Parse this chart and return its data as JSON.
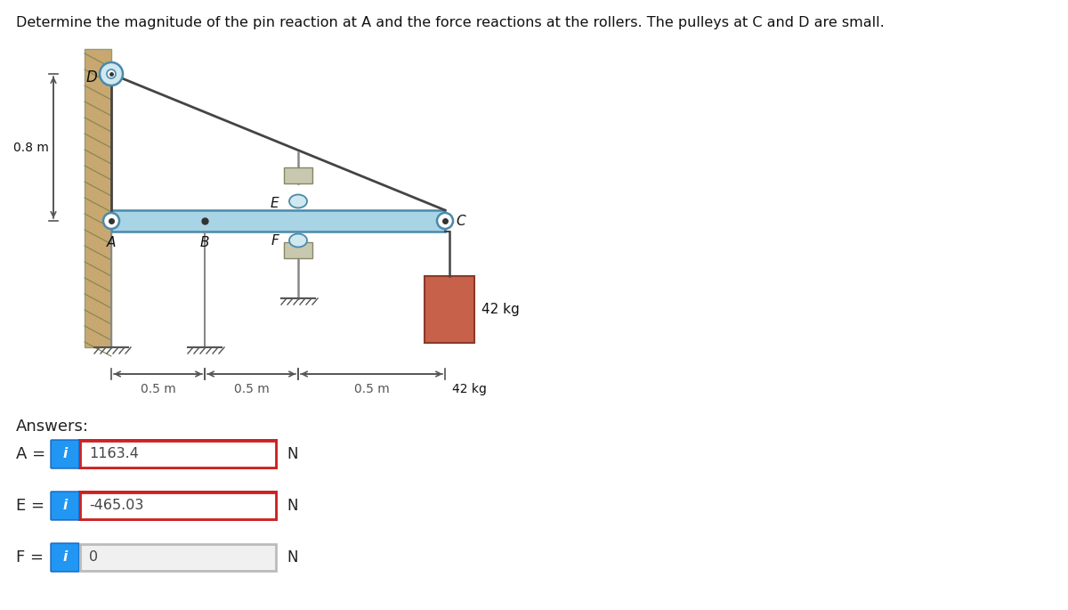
{
  "title": "Determine the magnitude of the pin reaction at A and the force reactions at the rollers. The pulleys at C and D are small.",
  "background_color": "#ffffff",
  "wall_color": "#c8a870",
  "wall_hatch_color": "#8B7040",
  "beam_color": "#a8d4e6",
  "beam_edge_color": "#4a8aaa",
  "rope_color": "#444444",
  "weight_color": "#c8614a",
  "weight_edge_color": "#8B3A2A",
  "pulley_fill": "#d0e8f0",
  "pulley_edge": "#4a8aaa",
  "roller_fill": "#c8c8b0",
  "roller_edge": "#888866",
  "dim_color": "#555555",
  "label_color": "#111111",
  "blue_button_color": "#2196F3",
  "answer_box_border_correct": "#cc2222",
  "answer_box_bg_correct": "#ffffff",
  "answer_box_bg_wrong": "#f0f0f0",
  "dim_0p8": "0.8 m",
  "dim_0p5_1": "0.5 m",
  "dim_0p5_2": "0.5 m",
  "dim_0p5_3": "0.5 m",
  "weight_label": "42 kg",
  "answers": [
    {
      "label": "A =",
      "value": "1163.4",
      "unit": "N",
      "correct": true
    },
    {
      "label": "E =",
      "value": "-465.03",
      "unit": "N",
      "correct": true
    },
    {
      "label": "F =",
      "value": "0",
      "unit": "N",
      "correct": false
    }
  ]
}
